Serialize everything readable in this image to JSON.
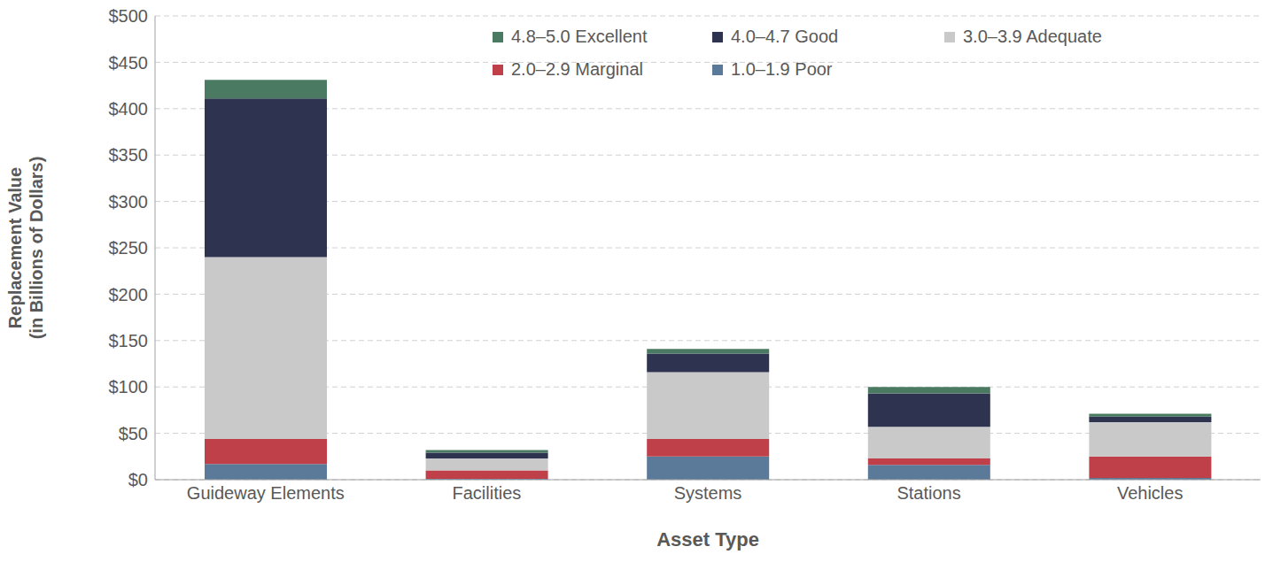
{
  "chart_data": {
    "type": "bar",
    "stacked": true,
    "grid": true,
    "legend": "top",
    "x_label": "Asset Type",
    "y_label": [
      "Replacement Value",
      "(in Billions of Dollars)"
    ],
    "categories": [
      "Guideway Elements",
      "Facilities",
      "Systems",
      "Stations",
      "Vehicles"
    ],
    "series": [
      {
        "name": "4.8–5.0 Excellent",
        "color": "#4a7a62",
        "values": [
          20,
          3,
          5,
          7,
          3
        ]
      },
      {
        "name": "4.0–4.7 Good",
        "color": "#2e3350",
        "values": [
          171,
          6,
          20,
          36,
          6
        ]
      },
      {
        "name": "3.0–3.9 Adequate",
        "color": "#c9c9c9",
        "values": [
          196,
          13,
          72,
          34,
          37
        ]
      },
      {
        "name": "2.0–2.9 Marginal",
        "color": "#c0404a",
        "values": [
          27,
          9,
          19,
          7,
          23
        ]
      },
      {
        "name": "1.0–1.9 Poor",
        "color": "#5b7a99",
        "values": [
          17,
          1,
          25,
          16,
          2
        ]
      }
    ],
    "ylim": [
      0,
      500
    ],
    "yticks": [
      {
        "value": 0,
        "label": "$0"
      },
      {
        "value": 50,
        "label": "$50"
      },
      {
        "value": 100,
        "label": "$100"
      },
      {
        "value": 150,
        "label": "$150"
      },
      {
        "value": 200,
        "label": "$200"
      },
      {
        "value": 250,
        "label": "$250"
      },
      {
        "value": 300,
        "label": "$300"
      },
      {
        "value": 350,
        "label": "$350"
      },
      {
        "value": 400,
        "label": "$400"
      },
      {
        "value": 450,
        "label": "$450"
      },
      {
        "value": 500,
        "label": "$500"
      }
    ]
  }
}
